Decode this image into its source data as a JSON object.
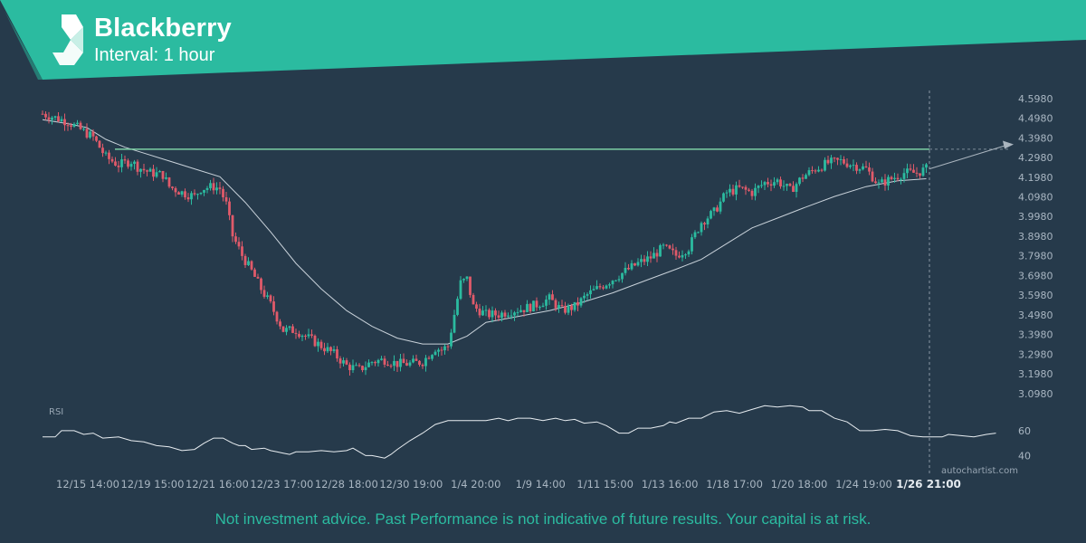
{
  "header": {
    "title": "Blackberry",
    "subtitle": "Interval: 1 hour",
    "brand_color": "#2bbba0",
    "logo_icon": "autochartist-logo-icon"
  },
  "disclaimer": "Not investment advice. Past Performance is not indicative of future results. Your capital is at risk.",
  "watermark": "autochartist.com",
  "chart_data": {
    "type": "candlestick",
    "instrument": "Blackberry",
    "interval": "1 hour",
    "y_ticks": [
      "4.5980",
      "4.4980",
      "4.3980",
      "4.2980",
      "4.1980",
      "4.0980",
      "3.9980",
      "3.8980",
      "3.7980",
      "3.6980",
      "3.5980",
      "3.4980",
      "3.3980",
      "3.2980",
      "3.1980",
      "3.0980"
    ],
    "ylim": [
      3.07,
      4.62
    ],
    "x_ticks": [
      "12/15 14:00",
      "12/19 15:00",
      "12/21 16:00",
      "12/23 17:00",
      "12/28 18:00",
      "12/30 19:00",
      "1/4 20:00",
      "1/9 14:00",
      "1/11 15:00",
      "1/13 16:00",
      "1/18 17:00",
      "1/20 18:00",
      "1/24 19:00",
      "1/26 21:00"
    ],
    "current_time_label": "1/26 21:00",
    "resistance_level": 4.34,
    "projection_target": 4.36,
    "series": [
      {
        "name": "Price",
        "kind": "candles",
        "close_points": [
          [
            0,
            4.52
          ],
          [
            4,
            4.5
          ],
          [
            8,
            4.48
          ],
          [
            12,
            4.44
          ],
          [
            16,
            4.4
          ],
          [
            20,
            4.3
          ],
          [
            24,
            4.26
          ],
          [
            28,
            4.28
          ],
          [
            30,
            4.25
          ],
          [
            34,
            4.22
          ],
          [
            38,
            4.21
          ],
          [
            40,
            4.15
          ],
          [
            44,
            4.12
          ],
          [
            48,
            4.1
          ],
          [
            50,
            4.14
          ],
          [
            54,
            4.15
          ],
          [
            56,
            4.14
          ],
          [
            58,
            4.06
          ],
          [
            60,
            3.9
          ],
          [
            63,
            3.8
          ],
          [
            66,
            3.72
          ],
          [
            69,
            3.63
          ],
          [
            72,
            3.55
          ],
          [
            76,
            3.42
          ],
          [
            80,
            3.42
          ],
          [
            84,
            3.38
          ],
          [
            88,
            3.34
          ],
          [
            92,
            3.3
          ],
          [
            96,
            3.24
          ],
          [
            100,
            3.22
          ],
          [
            104,
            3.26
          ],
          [
            108,
            3.27
          ],
          [
            112,
            3.25
          ],
          [
            116,
            3.25
          ],
          [
            120,
            3.26
          ],
          [
            124,
            3.33
          ],
          [
            126,
            3.32
          ],
          [
            128,
            3.34
          ],
          [
            130,
            3.5
          ],
          [
            132,
            3.66
          ],
          [
            134,
            3.68
          ],
          [
            136,
            3.54
          ],
          [
            140,
            3.5
          ],
          [
            144,
            3.5
          ],
          [
            148,
            3.52
          ],
          [
            152,
            3.53
          ],
          [
            156,
            3.55
          ],
          [
            160,
            3.58
          ],
          [
            164,
            3.52
          ],
          [
            168,
            3.54
          ],
          [
            172,
            3.6
          ],
          [
            176,
            3.64
          ],
          [
            180,
            3.68
          ],
          [
            184,
            3.72
          ],
          [
            188,
            3.76
          ],
          [
            192,
            3.79
          ],
          [
            196,
            3.84
          ],
          [
            200,
            3.8
          ],
          [
            204,
            3.84
          ],
          [
            208,
            3.97
          ],
          [
            212,
            4.02
          ],
          [
            216,
            4.12
          ],
          [
            220,
            4.14
          ],
          [
            224,
            4.12
          ],
          [
            228,
            4.17
          ],
          [
            232,
            4.18
          ],
          [
            236,
            4.13
          ],
          [
            240,
            4.2
          ],
          [
            244,
            4.24
          ],
          [
            248,
            4.27
          ],
          [
            252,
            4.28
          ],
          [
            256,
            4.26
          ],
          [
            260,
            4.24
          ],
          [
            264,
            4.16
          ],
          [
            268,
            4.19
          ],
          [
            272,
            4.22
          ],
          [
            276,
            4.22
          ],
          [
            279,
            4.24
          ]
        ]
      },
      {
        "name": "Moving average",
        "kind": "line",
        "points": [
          [
            0,
            4.49
          ],
          [
            8,
            4.47
          ],
          [
            14,
            4.45
          ],
          [
            20,
            4.39
          ],
          [
            26,
            4.35
          ],
          [
            32,
            4.32
          ],
          [
            40,
            4.28
          ],
          [
            48,
            4.24
          ],
          [
            56,
            4.2
          ],
          [
            64,
            4.07
          ],
          [
            72,
            3.92
          ],
          [
            80,
            3.76
          ],
          [
            88,
            3.63
          ],
          [
            96,
            3.52
          ],
          [
            104,
            3.44
          ],
          [
            112,
            3.38
          ],
          [
            120,
            3.35
          ],
          [
            128,
            3.35
          ],
          [
            134,
            3.39
          ],
          [
            140,
            3.46
          ],
          [
            150,
            3.49
          ],
          [
            160,
            3.52
          ],
          [
            170,
            3.56
          ],
          [
            180,
            3.61
          ],
          [
            190,
            3.67
          ],
          [
            200,
            3.73
          ],
          [
            208,
            3.78
          ],
          [
            216,
            3.86
          ],
          [
            224,
            3.94
          ],
          [
            232,
            3.99
          ],
          [
            240,
            4.04
          ],
          [
            250,
            4.1
          ],
          [
            260,
            4.15
          ],
          [
            270,
            4.18
          ],
          [
            279,
            4.19
          ]
        ]
      }
    ],
    "rsi": {
      "label": "RSI",
      "y_ticks": [
        "60",
        "40"
      ],
      "ylim": [
        28,
        86
      ],
      "points": [
        [
          0,
          55
        ],
        [
          4,
          55
        ],
        [
          6,
          60
        ],
        [
          10,
          60
        ],
        [
          13,
          57
        ],
        [
          16,
          58
        ],
        [
          19,
          54
        ],
        [
          24,
          55
        ],
        [
          28,
          52
        ],
        [
          32,
          51
        ],
        [
          36,
          48
        ],
        [
          40,
          47
        ],
        [
          44,
          44
        ],
        [
          48,
          45
        ],
        [
          51,
          50
        ],
        [
          54,
          54
        ],
        [
          57,
          54
        ],
        [
          60,
          50
        ],
        [
          62,
          48
        ],
        [
          64,
          48
        ],
        [
          66,
          45
        ],
        [
          70,
          46
        ],
        [
          72,
          44
        ],
        [
          74,
          43
        ],
        [
          76,
          42
        ],
        [
          78,
          41
        ],
        [
          80,
          43
        ],
        [
          84,
          43
        ],
        [
          88,
          44
        ],
        [
          92,
          43
        ],
        [
          96,
          44
        ],
        [
          98,
          46
        ],
        [
          100,
          43
        ],
        [
          102,
          40
        ],
        [
          104,
          40
        ],
        [
          106,
          39
        ],
        [
          108,
          38
        ],
        [
          110,
          41
        ],
        [
          112,
          45
        ],
        [
          116,
          52
        ],
        [
          120,
          58
        ],
        [
          124,
          65
        ],
        [
          128,
          68
        ],
        [
          132,
          68
        ],
        [
          136,
          68
        ],
        [
          140,
          68
        ],
        [
          144,
          70
        ],
        [
          147,
          68
        ],
        [
          150,
          70
        ],
        [
          154,
          70
        ],
        [
          158,
          68
        ],
        [
          160,
          69
        ],
        [
          162,
          70
        ],
        [
          165,
          68
        ],
        [
          168,
          69
        ],
        [
          171,
          66
        ],
        [
          175,
          67
        ],
        [
          178,
          64
        ],
        [
          182,
          58
        ],
        [
          185,
          58
        ],
        [
          188,
          62
        ],
        [
          192,
          62
        ],
        [
          196,
          64
        ],
        [
          198,
          67
        ],
        [
          200,
          66
        ],
        [
          204,
          70
        ],
        [
          208,
          70
        ],
        [
          212,
          75
        ],
        [
          216,
          76
        ],
        [
          220,
          74
        ],
        [
          224,
          77
        ],
        [
          228,
          80
        ],
        [
          232,
          79
        ],
        [
          236,
          80
        ],
        [
          240,
          79
        ],
        [
          242,
          76
        ],
        [
          246,
          76
        ],
        [
          250,
          70
        ],
        [
          254,
          67
        ],
        [
          258,
          60
        ],
        [
          262,
          60
        ],
        [
          266,
          61
        ],
        [
          270,
          60
        ],
        [
          274,
          56
        ],
        [
          278,
          55
        ],
        [
          282,
          55
        ],
        [
          284,
          55
        ],
        [
          286,
          57
        ],
        [
          290,
          56
        ],
        [
          294,
          55
        ],
        [
          298,
          57
        ],
        [
          301,
          58
        ]
      ]
    }
  }
}
